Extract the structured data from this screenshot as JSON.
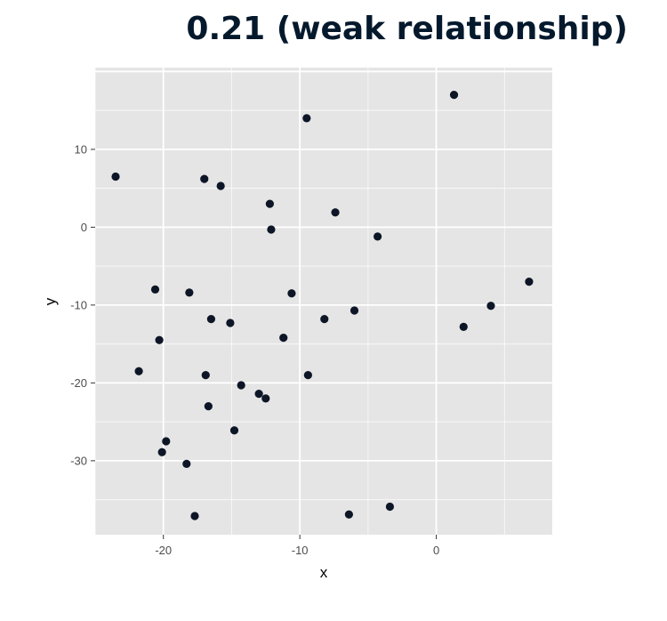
{
  "title": "0.21 (weak relationship)",
  "chart_data": {
    "type": "scatter",
    "xlabel": "x",
    "ylabel": "y",
    "xlim": [
      -25,
      8.5
    ],
    "ylim": [
      -39.5,
      20.5
    ],
    "x_ticks": [
      -20,
      -10,
      0
    ],
    "y_ticks": [
      -30,
      -20,
      -10,
      0,
      10
    ],
    "grid": true,
    "colors": {
      "panel": "#e5e5e5",
      "grid": "#ffffff",
      "point": "#0d1626"
    },
    "points": [
      [
        -23.5,
        6.5
      ],
      [
        -17.0,
        6.2
      ],
      [
        -15.8,
        5.3
      ],
      [
        -12.2,
        3.0
      ],
      [
        -12.1,
        -0.3
      ],
      [
        -9.5,
        14.0
      ],
      [
        -7.4,
        1.9
      ],
      [
        -4.3,
        -1.2
      ],
      [
        1.3,
        17.0
      ],
      [
        6.8,
        -7.0
      ],
      [
        4.0,
        -10.1
      ],
      [
        2.0,
        -12.8
      ],
      [
        -6.0,
        -10.7
      ],
      [
        -8.2,
        -11.8
      ],
      [
        -10.6,
        -8.5
      ],
      [
        -11.2,
        -14.2
      ],
      [
        -9.4,
        -19.0
      ],
      [
        -16.5,
        -11.8
      ],
      [
        -15.1,
        -12.3
      ],
      [
        -18.1,
        -8.4
      ],
      [
        -20.6,
        -8.0
      ],
      [
        -20.3,
        -14.5
      ],
      [
        -21.8,
        -18.5
      ],
      [
        -16.9,
        -19.0
      ],
      [
        -14.3,
        -20.3
      ],
      [
        -13.0,
        -21.4
      ],
      [
        -12.5,
        -22.0
      ],
      [
        -16.7,
        -23.0
      ],
      [
        -14.8,
        -26.1
      ],
      [
        -19.8,
        -27.5
      ],
      [
        -20.1,
        -28.9
      ],
      [
        -18.3,
        -30.4
      ],
      [
        -17.7,
        -37.1
      ],
      [
        -6.4,
        -36.9
      ],
      [
        -3.4,
        -35.9
      ]
    ]
  }
}
